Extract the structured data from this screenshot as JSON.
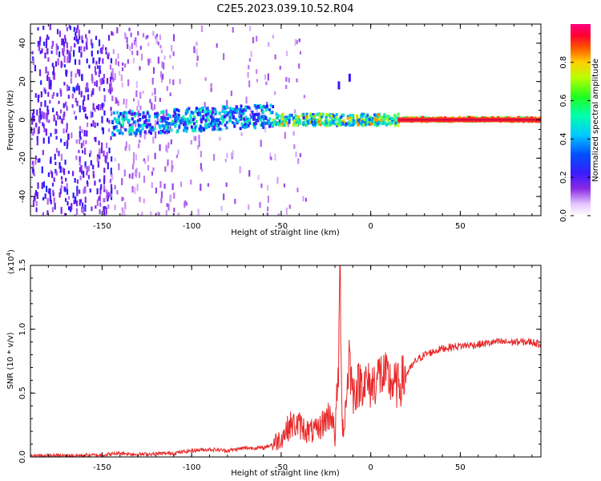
{
  "title": "C2E5.2023.039.10.52.R04",
  "colors": {
    "snr_line": "#e8292a",
    "axis": "#000000",
    "background": "#ffffff"
  },
  "chart_data": [
    {
      "type": "heatmap",
      "title": "C2E5.2023.039.10.52.R04",
      "xlabel": "Height of straight line (km)",
      "ylabel": "Frequency (Hz)",
      "xlim": [
        -190,
        95
      ],
      "ylim": [
        -50,
        50
      ],
      "x_ticks": [
        "-150",
        "-100",
        "-50",
        "0",
        "50"
      ],
      "y_ticks": [
        "-40",
        "-20",
        "0",
        "20",
        "40"
      ],
      "colorbar": {
        "label": "Normalized spectral amplitude",
        "range": [
          0.0,
          1.0
        ],
        "ticks": [
          "0.0",
          "0.2",
          "0.4",
          "0.6",
          "0.8"
        ],
        "scale": "rainbow (white/violet low → red/magenta high)"
      },
      "features": {
        "scattered_noise_x_range": [
          -190,
          -60
        ],
        "signal_band_x_range": [
          -145,
          95
        ],
        "signal_center_frequency_hz": 0,
        "narrow_high_amplitude_x_range": [
          15,
          95
        ],
        "isolated_blips": [
          {
            "x": -18,
            "y": 18
          },
          {
            "x": -12,
            "y": 22
          }
        ]
      }
    },
    {
      "type": "line",
      "xlabel": "Height of straight line (km)",
      "ylabel": "SNR (10 * v/v)",
      "y_multiplier_label": "(x10",
      "y_multiplier_exp": "4",
      "y_multiplier_close": ")",
      "xlim": [
        -190,
        95
      ],
      "ylim": [
        0.0,
        1.5
      ],
      "x_ticks": [
        "-150",
        "-100",
        "-50",
        "0",
        "50"
      ],
      "y_ticks": [
        "0.0",
        "0.5",
        "1.0",
        "1.5"
      ],
      "series": [
        {
          "x": [
            -190,
            -170,
            -150,
            -140,
            -130,
            -110,
            -100,
            -90,
            -80,
            -70,
            -60,
            -55,
            -50,
            -45,
            -40,
            -35,
            -30,
            -25,
            -22,
            -20,
            -18,
            -17,
            -16,
            -15,
            -12,
            -10,
            -5,
            0,
            5,
            10,
            15,
            20,
            25,
            30,
            40,
            50,
            60,
            70,
            80,
            90,
            95
          ],
          "y": [
            0.01,
            0.01,
            0.015,
            0.03,
            0.02,
            0.03,
            0.05,
            0.06,
            0.05,
            0.07,
            0.07,
            0.1,
            0.15,
            0.25,
            0.25,
            0.2,
            0.2,
            0.3,
            0.35,
            0.15,
            0.7,
            1.5,
            0.3,
            0.2,
            0.8,
            0.5,
            0.6,
            0.55,
            0.65,
            0.6,
            0.55,
            0.65,
            0.75,
            0.8,
            0.85,
            0.87,
            0.88,
            0.9,
            0.9,
            0.9,
            0.88
          ]
        }
      ]
    }
  ]
}
